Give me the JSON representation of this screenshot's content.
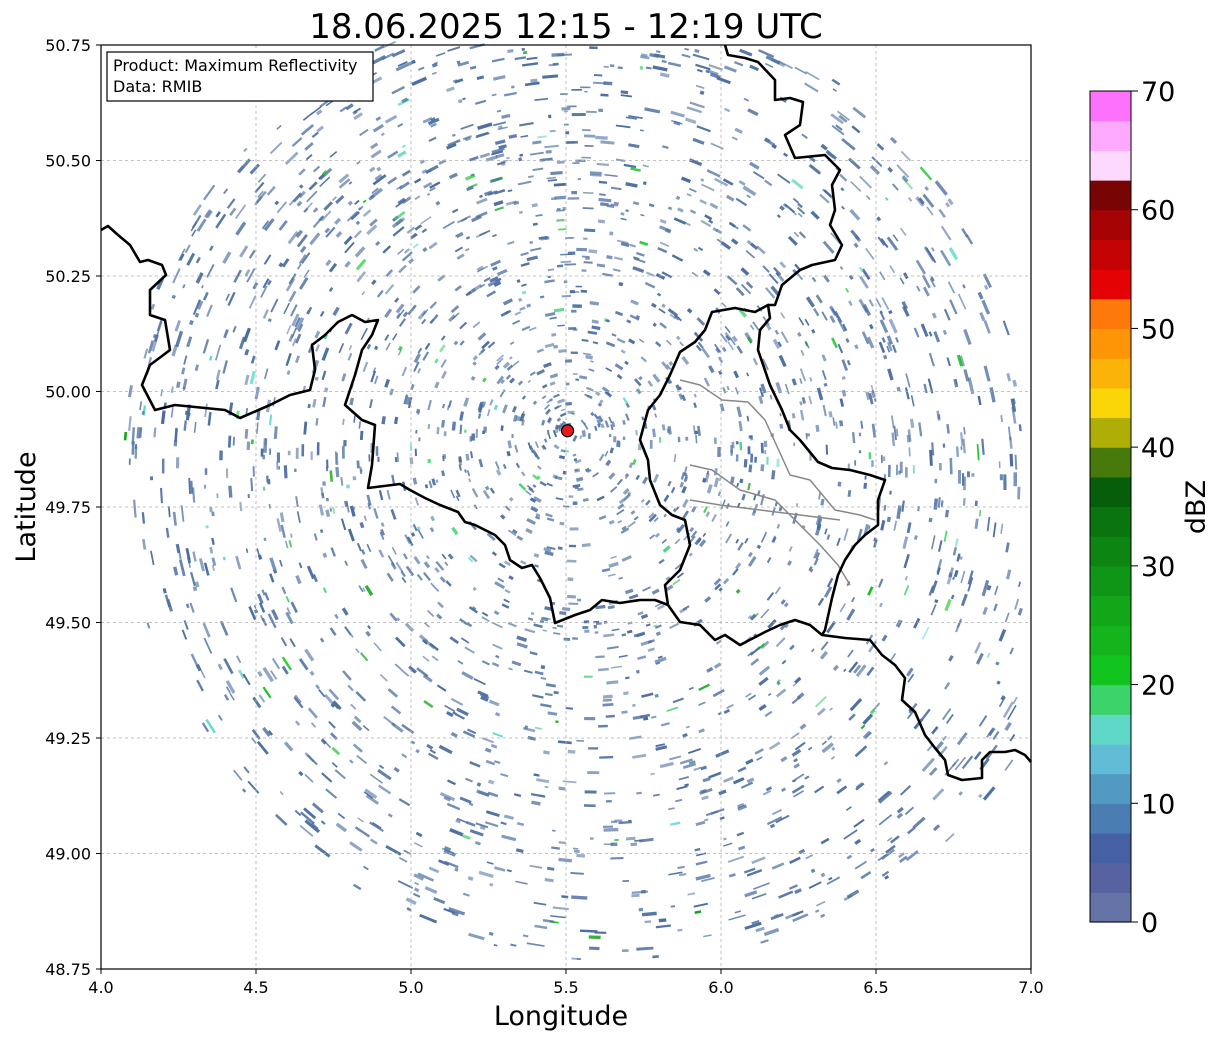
{
  "title": "18.06.2025 12:15 - 12:19 UTC",
  "info_box": {
    "product": "Product: Maximum Reflectivity",
    "data": "Data: RMIB"
  },
  "map": {
    "xlabel": "Longitude",
    "ylabel": "Latitude",
    "x_range": [
      4.0,
      7.0
    ],
    "y_range": [
      48.75,
      50.75
    ],
    "x_ticks": [
      "4.0",
      "4.5",
      "5.0",
      "5.5",
      "6.0",
      "6.5",
      "7.0"
    ],
    "y_ticks": [
      "48.75",
      "49.00",
      "49.25",
      "49.50",
      "49.75",
      "50.00",
      "50.25",
      "50.50",
      "50.75"
    ],
    "grid": true,
    "radar_site": {
      "lon": 5.505,
      "lat": 49.915,
      "color": "#e41a1c"
    },
    "echo_color": "#4a6da0"
  },
  "colorbar": {
    "label": "dBZ",
    "range": [
      0,
      70
    ],
    "step": 2.5,
    "ticks": [
      "0",
      "10",
      "20",
      "30",
      "40",
      "50",
      "60",
      "70"
    ],
    "colors": [
      "#6573a7",
      "#5663a0",
      "#4660a4",
      "#4a7db2",
      "#539ac3",
      "#61bcd6",
      "#60d8c8",
      "#3cd36a",
      "#11c41d",
      "#14b51c",
      "#12a619",
      "#0f9616",
      "#0c8512",
      "#0a740e",
      "#075e0a",
      "#477a0b",
      "#aeae07",
      "#fad507",
      "#fcb308",
      "#fd9507",
      "#fd790a",
      "#e30303",
      "#c40305",
      "#a60305",
      "#780404",
      "#fed9fe",
      "#fdaafe",
      "#fd72fd",
      "#f43af3"
    ]
  }
}
